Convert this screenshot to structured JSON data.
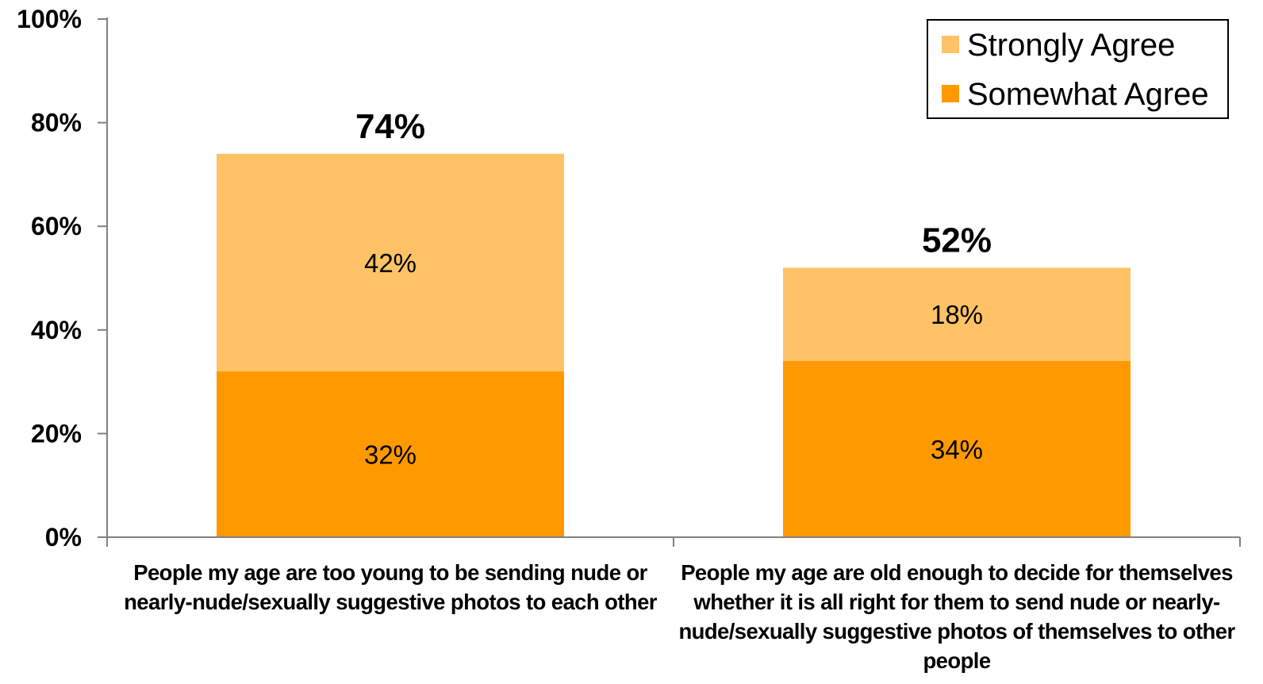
{
  "chart_data": {
    "type": "bar",
    "stacked": true,
    "categories": [
      "People my age are too young to be sending nude or nearly-nude/sexually suggestive photos to each other",
      "People my age are old enough to decide for themselves whether it is all right for them to send nude or nearly-nude/sexually suggestive photos of themselves to other people"
    ],
    "series": [
      {
        "name": "Somewhat Agree",
        "values": [
          32,
          34
        ],
        "labels": [
          "32%",
          "34%"
        ],
        "color": "#FF9900"
      },
      {
        "name": "Strongly Agree",
        "values": [
          42,
          18
        ],
        "labels": [
          "42%",
          "18%"
        ],
        "color": "#FFC266"
      }
    ],
    "totals": [
      74,
      52
    ],
    "total_labels": [
      "74%",
      "52%"
    ],
    "yticks": [
      0,
      20,
      40,
      60,
      80,
      100
    ],
    "ytick_labels": [
      "0%",
      "20%",
      "40%",
      "60%",
      "80%",
      "100%"
    ],
    "ylim": [
      0,
      100
    ],
    "legend": {
      "placement": "top-right",
      "items": [
        {
          "name": "Strongly Agree",
          "color": "#FFC266"
        },
        {
          "name": "Somewhat Agree",
          "color": "#FF9900"
        }
      ]
    },
    "grid": false
  }
}
